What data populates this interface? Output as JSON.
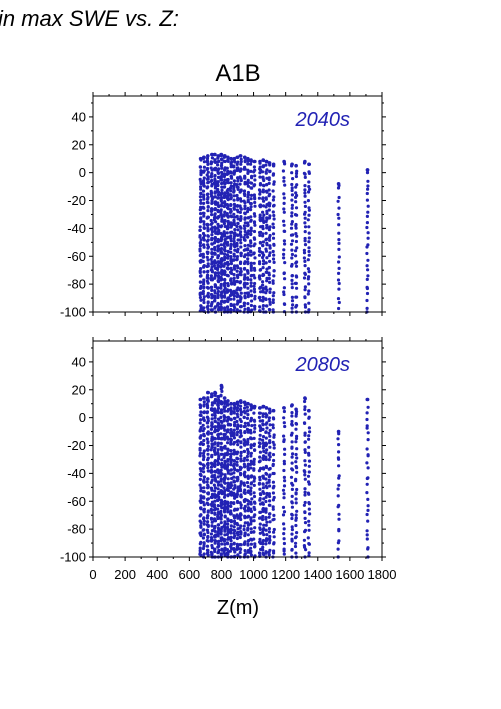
{
  "page": {
    "suptitle": "in max SWE vs. Z:",
    "title": "A1B",
    "xlabel": "Z(m)"
  },
  "colors": {
    "points": "#2222b4",
    "axes": "#000000"
  },
  "chart_data": [
    {
      "type": "scatter",
      "panel_label": "2040s",
      "xlim": [
        0,
        1800
      ],
      "ylim": [
        -100,
        55
      ],
      "xticks": [
        0,
        200,
        400,
        600,
        800,
        1000,
        1200,
        1400,
        1600,
        1800
      ],
      "yticks": [
        -100,
        -80,
        -60,
        -40,
        -20,
        0,
        20,
        40
      ],
      "x_tick_labels_shown": false,
      "grid": false,
      "columns": [
        {
          "x": 670,
          "ymin": -100,
          "ymax": 10,
          "n": 60
        },
        {
          "x": 690,
          "ymin": -100,
          "ymax": 11,
          "n": 55
        },
        {
          "x": 715,
          "ymin": -100,
          "ymax": 12,
          "n": 70
        },
        {
          "x": 740,
          "ymin": -100,
          "ymax": 13,
          "n": 70
        },
        {
          "x": 760,
          "ymin": -100,
          "ymax": 13,
          "n": 75
        },
        {
          "x": 780,
          "ymin": -100,
          "ymax": 12,
          "n": 75
        },
        {
          "x": 800,
          "ymin": -100,
          "ymax": 13,
          "n": 80
        },
        {
          "x": 820,
          "ymin": -100,
          "ymax": 12,
          "n": 80
        },
        {
          "x": 840,
          "ymin": -100,
          "ymax": 11,
          "n": 70
        },
        {
          "x": 860,
          "ymin": -100,
          "ymax": 10,
          "n": 65
        },
        {
          "x": 880,
          "ymin": -100,
          "ymax": 10,
          "n": 60
        },
        {
          "x": 900,
          "ymin": -100,
          "ymax": 11,
          "n": 60
        },
        {
          "x": 920,
          "ymin": -100,
          "ymax": 12,
          "n": 55
        },
        {
          "x": 945,
          "ymin": -100,
          "ymax": 11,
          "n": 55
        },
        {
          "x": 965,
          "ymin": -100,
          "ymax": 10,
          "n": 50
        },
        {
          "x": 985,
          "ymin": -100,
          "ymax": 9,
          "n": 45
        },
        {
          "x": 1005,
          "ymin": -100,
          "ymax": 8,
          "n": 40
        },
        {
          "x": 1040,
          "ymin": -100,
          "ymax": 8,
          "n": 45
        },
        {
          "x": 1060,
          "ymin": -100,
          "ymax": 9,
          "n": 50
        },
        {
          "x": 1080,
          "ymin": -100,
          "ymax": 8,
          "n": 45
        },
        {
          "x": 1100,
          "ymin": -100,
          "ymax": 7,
          "n": 40
        },
        {
          "x": 1125,
          "ymin": -100,
          "ymax": 6,
          "n": 35
        },
        {
          "x": 1190,
          "ymin": -100,
          "ymax": 8,
          "n": 30
        },
        {
          "x": 1240,
          "ymin": -100,
          "ymax": 6,
          "n": 35
        },
        {
          "x": 1265,
          "ymin": -100,
          "ymax": 5,
          "n": 35
        },
        {
          "x": 1320,
          "ymin": -100,
          "ymax": 8,
          "n": 35
        },
        {
          "x": 1345,
          "ymin": -100,
          "ymax": 6,
          "n": 30
        },
        {
          "x": 1530,
          "ymin": -98,
          "ymax": -8,
          "n": 22
        },
        {
          "x": 1710,
          "ymin": -100,
          "ymax": 2,
          "n": 28
        }
      ]
    },
    {
      "type": "scatter",
      "panel_label": "2080s",
      "xlim": [
        0,
        1800
      ],
      "ylim": [
        -100,
        55
      ],
      "xticks": [
        0,
        200,
        400,
        600,
        800,
        1000,
        1200,
        1400,
        1600,
        1800
      ],
      "yticks": [
        -100,
        -80,
        -60,
        -40,
        -20,
        0,
        20,
        40
      ],
      "x_tick_labels_shown": true,
      "grid": false,
      "columns": [
        {
          "x": 670,
          "ymin": -100,
          "ymax": 13,
          "n": 60
        },
        {
          "x": 690,
          "ymin": -100,
          "ymax": 14,
          "n": 55
        },
        {
          "x": 715,
          "ymin": -100,
          "ymax": 18,
          "n": 70
        },
        {
          "x": 740,
          "ymin": -100,
          "ymax": 17,
          "n": 70
        },
        {
          "x": 760,
          "ymin": -100,
          "ymax": 18,
          "n": 75
        },
        {
          "x": 780,
          "ymin": -100,
          "ymax": 15,
          "n": 75
        },
        {
          "x": 800,
          "ymin": -100,
          "ymax": 23,
          "n": 80
        },
        {
          "x": 820,
          "ymin": -100,
          "ymax": 14,
          "n": 80
        },
        {
          "x": 840,
          "ymin": -100,
          "ymax": 12,
          "n": 70
        },
        {
          "x": 860,
          "ymin": -100,
          "ymax": 10,
          "n": 65
        },
        {
          "x": 880,
          "ymin": -100,
          "ymax": 10,
          "n": 60
        },
        {
          "x": 900,
          "ymin": -100,
          "ymax": 11,
          "n": 60
        },
        {
          "x": 920,
          "ymin": -100,
          "ymax": 12,
          "n": 55
        },
        {
          "x": 945,
          "ymin": -100,
          "ymax": 11,
          "n": 55
        },
        {
          "x": 965,
          "ymin": -100,
          "ymax": 10,
          "n": 50
        },
        {
          "x": 985,
          "ymin": -100,
          "ymax": 9,
          "n": 45
        },
        {
          "x": 1005,
          "ymin": -100,
          "ymax": 8,
          "n": 40
        },
        {
          "x": 1040,
          "ymin": -100,
          "ymax": 7,
          "n": 45
        },
        {
          "x": 1060,
          "ymin": -100,
          "ymax": 8,
          "n": 50
        },
        {
          "x": 1080,
          "ymin": -100,
          "ymax": 7,
          "n": 45
        },
        {
          "x": 1100,
          "ymin": -100,
          "ymax": 6,
          "n": 40
        },
        {
          "x": 1125,
          "ymin": -100,
          "ymax": 5,
          "n": 35
        },
        {
          "x": 1190,
          "ymin": -100,
          "ymax": 7,
          "n": 30
        },
        {
          "x": 1240,
          "ymin": -100,
          "ymax": 9,
          "n": 35
        },
        {
          "x": 1265,
          "ymin": -100,
          "ymax": 6,
          "n": 35
        },
        {
          "x": 1320,
          "ymin": -100,
          "ymax": 14,
          "n": 35
        },
        {
          "x": 1345,
          "ymin": -100,
          "ymax": 5,
          "n": 30
        },
        {
          "x": 1530,
          "ymin": -100,
          "ymax": -10,
          "n": 22
        },
        {
          "x": 1710,
          "ymin": -100,
          "ymax": 13,
          "n": 28
        }
      ]
    }
  ]
}
